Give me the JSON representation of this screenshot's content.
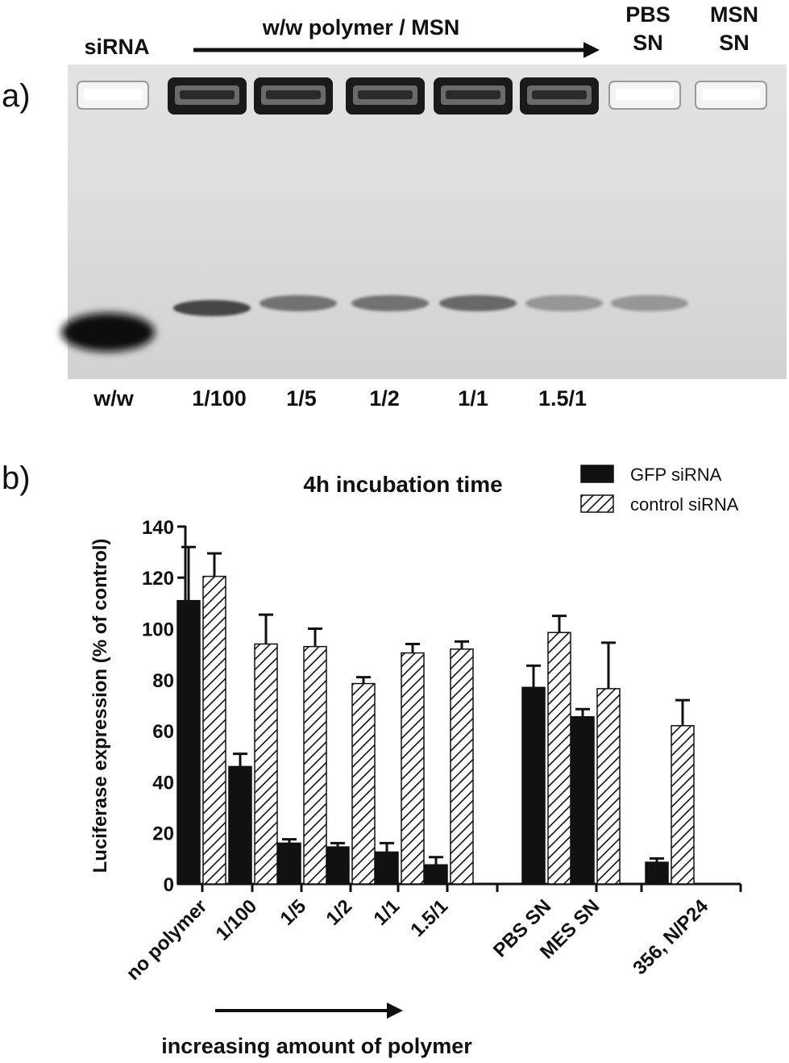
{
  "panel_a": {
    "letter": "a)",
    "header_siRNA": "siRNA",
    "header_arrow": "w/w polymer / MSN",
    "header_pbs_line1": "PBS",
    "header_pbs_line2": "SN",
    "header_msn_line1": "MSN",
    "header_msn_line2": "SN",
    "ratio_row_label": "w/w",
    "ratios": [
      "1/100",
      "1/5",
      "1/2",
      "1/1",
      "1.5/1"
    ],
    "band_intensity": [
      1.0,
      0.8,
      0.55,
      0.55,
      0.6,
      0.35,
      0.35,
      0.0
    ],
    "well_loaded": [
      0,
      1,
      1,
      1,
      1,
      1,
      0,
      0
    ]
  },
  "panel_b": {
    "letter": "b)",
    "bottom_note": "increasing amount of polymer"
  },
  "chart_data": {
    "type": "bar",
    "title": "4h incubation time",
    "xlabel": "",
    "ylabel": "Luciferase expression (% of control)",
    "ylim": [
      0,
      140
    ],
    "yticks": [
      "0",
      "20",
      "40",
      "60",
      "80",
      "100",
      "120",
      "140"
    ],
    "grid": false,
    "legend_position": "top-right",
    "categories": [
      "no polymer",
      "1/100",
      "1/5",
      "1/2",
      "1/1",
      "1.5/1",
      "PBS SN",
      "MES SN",
      "356, N/P24"
    ],
    "series": [
      {
        "name": "GFP siRNA",
        "color": "#111111",
        "values": [
          111,
          46,
          16,
          14.5,
          12.5,
          7.5,
          77,
          65.5,
          8.5
        ],
        "errors": [
          21,
          5,
          1.5,
          1.5,
          3.5,
          3,
          8.5,
          3,
          1.5
        ]
      },
      {
        "name": "control siRNA",
        "color": "#ffffff",
        "values": [
          120.5,
          94,
          93,
          78.5,
          90.5,
          92,
          98.5,
          76.5,
          62
        ],
        "errors": [
          9,
          11.5,
          7,
          2.5,
          3.5,
          3,
          6.5,
          18,
          10
        ]
      }
    ]
  }
}
